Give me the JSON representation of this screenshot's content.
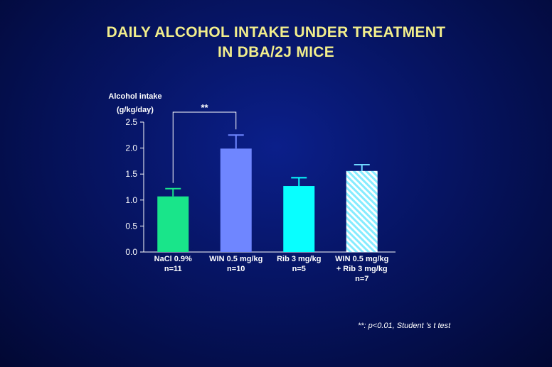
{
  "title_line1": "DAILY ALCOHOL INTAKE UNDER TREATMENT",
  "title_line2": "IN DBA/2J MICE",
  "footnote": "**: p<0.01, Student 's t test",
  "colors": {
    "background": "#061462",
    "title": "#f2ee8c",
    "text": "#ffffff",
    "nacl": "#19e58a",
    "win": "#6f86ff",
    "rib": "#08ffff",
    "win_rib_hatch": "#9ff2ff"
  },
  "chart_data": {
    "type": "bar",
    "title": "DAILY ALCOHOL INTAKE UNDER TREATMENT IN DBA/2J MICE",
    "ylabel_line1": "Alcohol intake",
    "ylabel_line2": "(g/kg/day)",
    "ylim": [
      0,
      2.5
    ],
    "yticks": [
      "0.0",
      "0.5",
      "1.0",
      "1.5",
      "2.0",
      "2.5"
    ],
    "grid": false,
    "categories": [
      {
        "lines": [
          "NaCl 0.9%",
          "n=11"
        ]
      },
      {
        "lines": [
          "WIN 0.5 mg/kg",
          "n=10"
        ]
      },
      {
        "lines": [
          "Rib 3 mg/kg",
          "n=5"
        ]
      },
      {
        "lines": [
          "WIN 0.5 mg/kg",
          "+ Rib 3 mg/kg",
          "n=7"
        ]
      }
    ],
    "values": [
      1.07,
      1.99,
      1.27,
      1.56
    ],
    "errors": [
      0.15,
      0.26,
      0.16,
      0.12
    ],
    "fills": [
      "solid",
      "solid",
      "solid",
      "hatched"
    ],
    "significance": {
      "from": 0,
      "to": 1,
      "label": "**"
    }
  }
}
